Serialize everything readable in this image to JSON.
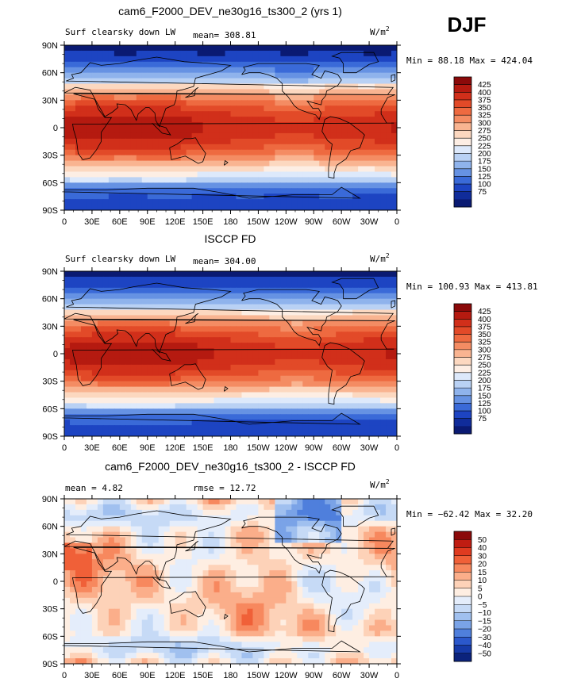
{
  "season": "DJF",
  "chart_data": [
    {
      "type": "heatmap",
      "title": "cam6_F2000_DEV_ne30g16_ts300_2 (yrs 1)",
      "left_label": "Surf clearsky down LW",
      "stat1_label": "mean=",
      "stat1_value": "308.81",
      "units": "W/m",
      "units_exp": "2",
      "minmax": "Min =  88.18 Max = 424.04",
      "x_ticks": [
        "0",
        "30E",
        "60E",
        "90E",
        "120E",
        "150E",
        "180",
        "150W",
        "120W",
        "90W",
        "60W",
        "30W",
        "0"
      ],
      "y_ticks": [
        "90N",
        "60N",
        "30N",
        "0",
        "30S",
        "60S",
        "90S"
      ],
      "field": "model",
      "colorbar": {
        "labels": [
          "425",
          "400",
          "375",
          "350",
          "325",
          "300",
          "275",
          "250",
          "225",
          "200",
          "175",
          "150",
          "125",
          "100",
          "75"
        ],
        "colors": [
          "#8b0a0a",
          "#b51a10",
          "#d12f1a",
          "#e24a28",
          "#ee6a40",
          "#f48c63",
          "#f9b491",
          "#fcd8c0",
          "#fdeee4",
          "#dde9fb",
          "#b9d1f4",
          "#8fb3ec",
          "#6692e3",
          "#3a6ad8",
          "#1d44c2",
          "#102c9a",
          "#0a1a72"
        ]
      }
    },
    {
      "type": "heatmap",
      "title": "ISCCP FD",
      "left_label": "Surf clearsky down LW",
      "stat1_label": "mean=",
      "stat1_value": "304.00",
      "units": "W/m",
      "units_exp": "2",
      "minmax": "Min = 100.93 Max = 413.81",
      "x_ticks": [
        "0",
        "30E",
        "60E",
        "90E",
        "120E",
        "150E",
        "180",
        "150W",
        "120W",
        "90W",
        "60W",
        "30W",
        "0"
      ],
      "y_ticks": [
        "90N",
        "60N",
        "30N",
        "0",
        "30S",
        "60S",
        "90S"
      ],
      "field": "obs",
      "colorbar": {
        "labels": [
          "425",
          "400",
          "375",
          "350",
          "325",
          "300",
          "275",
          "250",
          "225",
          "200",
          "175",
          "150",
          "125",
          "100",
          "75"
        ],
        "colors": [
          "#8b0a0a",
          "#b51a10",
          "#d12f1a",
          "#e24a28",
          "#ee6a40",
          "#f48c63",
          "#f9b491",
          "#fcd8c0",
          "#fdeee4",
          "#dde9fb",
          "#b9d1f4",
          "#8fb3ec",
          "#6692e3",
          "#3a6ad8",
          "#1d44c2",
          "#102c9a",
          "#0a1a72"
        ]
      }
    },
    {
      "type": "heatmap",
      "title": "cam6_F2000_DEV_ne30g16_ts300_2 - ISCCP FD",
      "left_label": "",
      "stat1_label": "mean =",
      "stat1_value": "4.82",
      "stat2_label": "rmse =",
      "stat2_value": "12.72",
      "units": "W/m",
      "units_exp": "2",
      "minmax": "Min = −62.42 Max =  32.20",
      "x_ticks": [
        "0",
        "30E",
        "60E",
        "90E",
        "120E",
        "150E",
        "180",
        "150W",
        "120W",
        "90W",
        "60W",
        "30W",
        "0"
      ],
      "y_ticks": [
        "90N",
        "60N",
        "30N",
        "0",
        "30S",
        "60S",
        "90S"
      ],
      "field": "diff",
      "colorbar": {
        "labels": [
          "50",
          "40",
          "30",
          "20",
          "15",
          "10",
          "5",
          "0",
          "−5",
          "−10",
          "−15",
          "−20",
          "−30",
          "−40",
          "−50"
        ],
        "colors": [
          "#8b0a0a",
          "#c01d12",
          "#e03b20",
          "#f06038",
          "#f7885e",
          "#fbae8a",
          "#fdd2b8",
          "#feeee2",
          "#e4edfb",
          "#c6daf6",
          "#a0c0ef",
          "#7aa3e7",
          "#4f7fdc",
          "#2b58cc",
          "#163aa8",
          "#0b237c"
        ]
      }
    }
  ]
}
